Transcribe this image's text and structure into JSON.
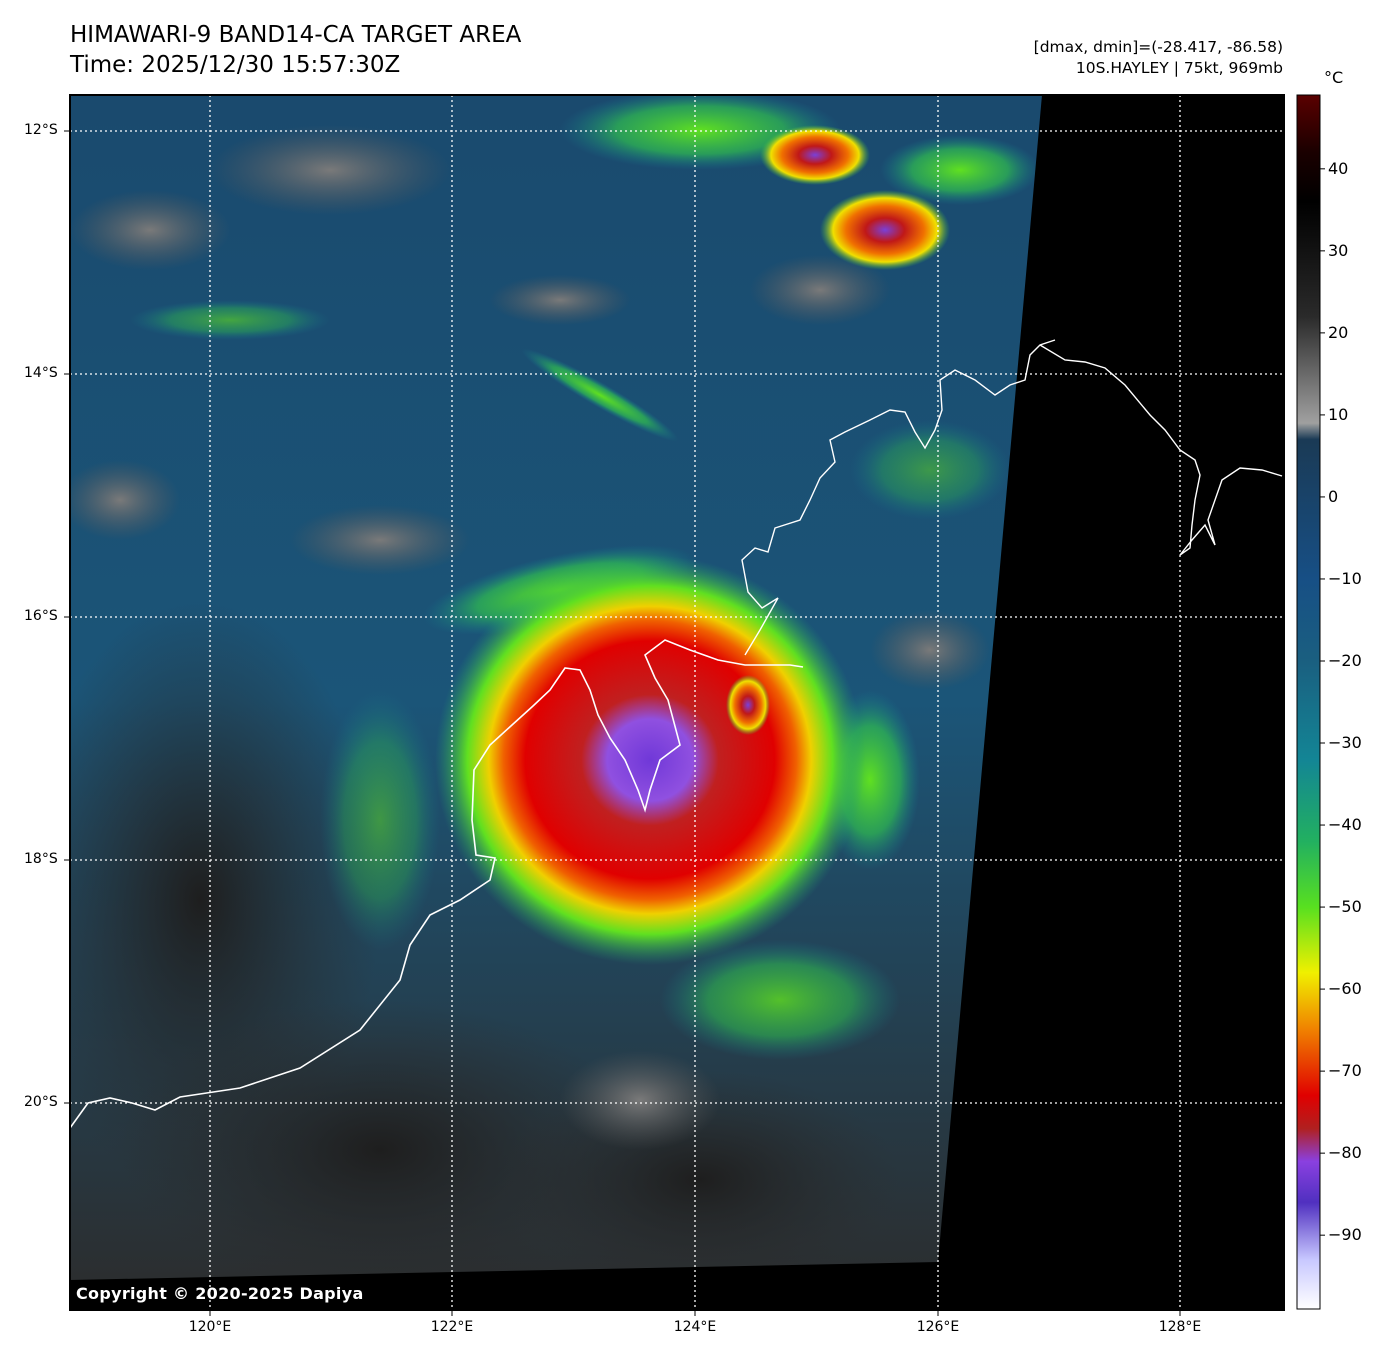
{
  "title": {
    "line1": "HIMAWARI-9 BAND14-CA TARGET AREA",
    "line2": "Time: 2025/12/30 15:57:30Z"
  },
  "info": {
    "line1": "[dmax, dmin]=(-28.417, -86.58)",
    "line2": "10S.HAYLEY | 75kt, 969mb"
  },
  "map": {
    "lat_labels": [
      "12°S",
      "14°S",
      "16°S",
      "18°S",
      "20°S"
    ],
    "lon_labels": [
      "120°E",
      "122°E",
      "124°E",
      "126°E",
      "128°E"
    ],
    "storm_name": "10S.HAYLEY",
    "copyright": "Copyright © 2020-2025 Dapiya"
  },
  "colorbar": {
    "unit": "°C",
    "ticks": [
      "40",
      "30",
      "20",
      "10",
      "0",
      "−10",
      "−20",
      "−30",
      "−40",
      "−50",
      "−60",
      "−70",
      "−80",
      "−90"
    ],
    "stops": [
      {
        "t": 49,
        "c": "#5a0000"
      },
      {
        "t": 42,
        "c": "#1a0000"
      },
      {
        "t": 36,
        "c": "#000000"
      },
      {
        "t": 22,
        "c": "#2a2a2a"
      },
      {
        "t": 9,
        "c": "#a0a0a0"
      },
      {
        "t": 7,
        "c": "#1a3a55"
      },
      {
        "t": -10,
        "c": "#174f85"
      },
      {
        "t": -20,
        "c": "#1a5f80"
      },
      {
        "t": -32,
        "c": "#138595"
      },
      {
        "t": -42,
        "c": "#22b060"
      },
      {
        "t": -50,
        "c": "#58e020"
      },
      {
        "t": -58,
        "c": "#f0f000"
      },
      {
        "t": -65,
        "c": "#f08000"
      },
      {
        "t": -73,
        "c": "#e00000"
      },
      {
        "t": -77,
        "c": "#b02020"
      },
      {
        "t": -81,
        "c": "#8a40e0"
      },
      {
        "t": -86,
        "c": "#5030c0"
      },
      {
        "t": -93,
        "c": "#c8c8ff"
      },
      {
        "t": -99,
        "c": "#ffffff"
      }
    ]
  }
}
